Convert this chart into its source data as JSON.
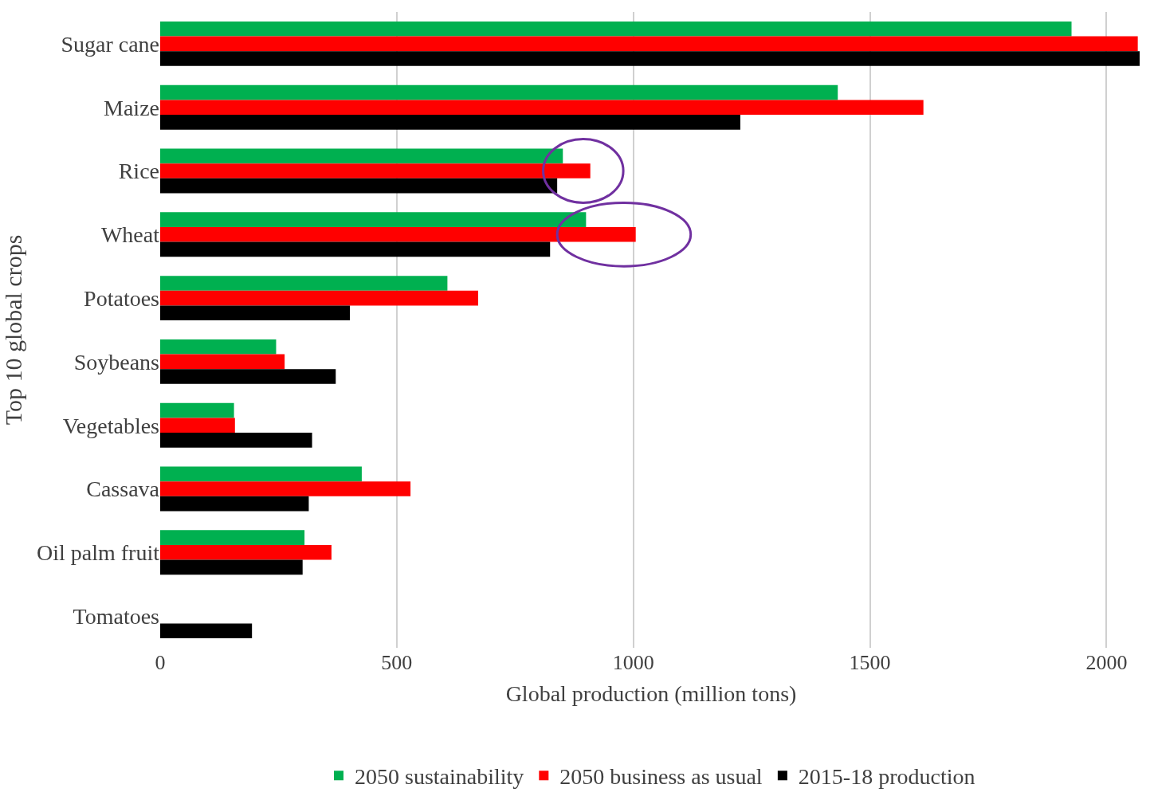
{
  "chart_data": {
    "type": "bar",
    "orientation": "horizontal",
    "xlabel": "Global production (million tons)",
    "ylabel": "Top 10 global crops",
    "categories": [
      "Sugar cane",
      "Maize",
      "Rice",
      "Wheat",
      "Potatoes",
      "Soybeans",
      "Vegetables",
      "Cassava",
      "Oil palm fruit",
      "Tomatoes"
    ],
    "series": [
      {
        "name": "2050 sustainability",
        "color": "#00b050",
        "values": [
          1926,
          1432,
          851,
          900,
          607,
          245,
          156,
          426,
          305,
          null
        ]
      },
      {
        "name": "2050 business as usual",
        "color": "#ff0000",
        "values": [
          2066,
          1613,
          909,
          1005,
          672,
          263,
          158,
          529,
          362,
          null
        ]
      },
      {
        "name": "2015-18 production",
        "color": "#000000",
        "values": [
          2070,
          1226,
          839,
          824,
          401,
          371,
          321,
          314,
          301,
          194
        ]
      }
    ],
    "xlim": [
      0,
      2075
    ],
    "xticks": [
      0,
      500,
      1000,
      1500,
      2000
    ],
    "grid": "x",
    "legend": "bottom"
  }
}
